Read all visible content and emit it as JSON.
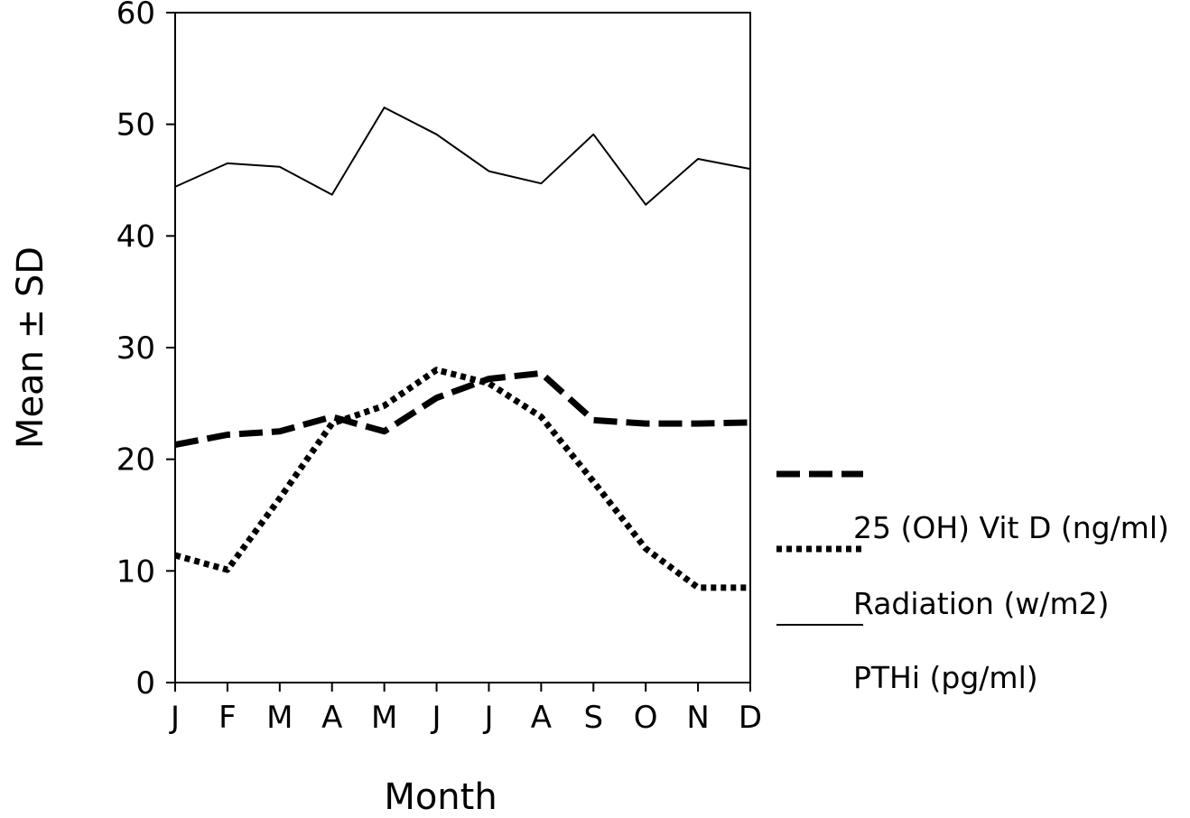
{
  "chart_data": {
    "type": "line",
    "categories": [
      "J",
      "F",
      "M",
      "A",
      "M",
      "J",
      "J",
      "A",
      "S",
      "O",
      "N",
      "D"
    ],
    "ylim": [
      0,
      60
    ],
    "yticks": [
      "0",
      "10",
      "20",
      "30",
      "40",
      "50",
      "60"
    ],
    "xlabel": "Month",
    "ylabel": "Mean ± SD",
    "grid": false,
    "legend_position": "right",
    "series": [
      {
        "name": "25 (OH) Vit D (ng/ml)",
        "style": "dashed",
        "values": [
          21.3,
          22.2,
          22.5,
          23.8,
          22.5,
          25.5,
          27.2,
          27.7,
          23.5,
          23.2,
          23.2,
          23.3
        ]
      },
      {
        "name": "Radiation (w/m2)",
        "style": "dotted",
        "values": [
          11.4,
          10.1,
          16.5,
          23.2,
          24.8,
          28.0,
          26.8,
          23.8,
          18.0,
          12.0,
          8.5,
          8.5
        ]
      },
      {
        "name": "PTHi (pg/ml)",
        "style": "solid",
        "values": [
          44.4,
          46.5,
          46.2,
          43.7,
          51.5,
          49.1,
          45.8,
          44.7,
          49.1,
          42.8,
          46.9,
          46.0
        ]
      }
    ]
  }
}
